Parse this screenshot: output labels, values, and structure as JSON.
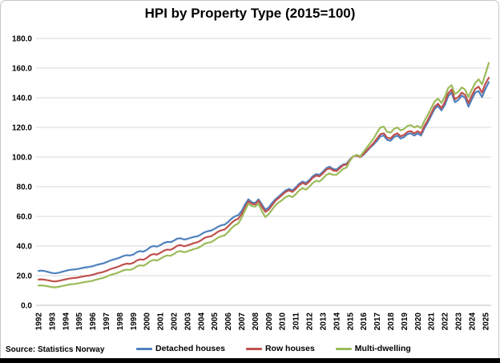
{
  "title": "HPI by Property Type (2015=100)",
  "source_note": "Source: Statistics Norway",
  "colors": {
    "detached": "#4F81BD",
    "row": "#C0504D",
    "multi": "#9BBB59",
    "gridline": "#D9D9D9",
    "axis_line": "#BFBFBF",
    "bottom_bar": "#000000",
    "chart_border": "#C6C6C6"
  },
  "chart_data": {
    "type": "line",
    "title": "HPI by Property Type (2015=100)",
    "xlabel": "",
    "ylabel": "",
    "ylim": [
      0,
      180
    ],
    "y_tick_step": 20,
    "y_tick_labels": [
      "0.0",
      "20.0",
      "40.0",
      "60.0",
      "80.0",
      "100.0",
      "120.0",
      "140.0",
      "160.0",
      "180.0"
    ],
    "x_tick_labels": [
      "1992",
      "1993",
      "1994",
      "1995",
      "1996",
      "1997",
      "1998",
      "1999",
      "2000",
      "2001",
      "2002",
      "2003",
      "2004",
      "2005",
      "2006",
      "2007",
      "2008",
      "2009",
      "2010",
      "2011",
      "2012",
      "2013",
      "2014",
      "2015",
      "2016",
      "2017",
      "2018",
      "2019",
      "2020",
      "2021",
      "2022",
      "2023",
      "2024",
      "2025"
    ],
    "points_per_year": 4,
    "grid": true,
    "legend_position": "bottom",
    "series": [
      {
        "name": "Detached houses",
        "color": "#4F81BD",
        "values": [
          23.2,
          23.4,
          23.0,
          22.4,
          21.8,
          21.6,
          22.0,
          22.6,
          23.2,
          23.8,
          24.1,
          24.3,
          24.7,
          25.2,
          25.6,
          25.9,
          26.4,
          27.1,
          27.7,
          28.2,
          29.0,
          30.0,
          30.8,
          31.4,
          32.2,
          33.2,
          33.8,
          33.6,
          34.2,
          35.8,
          36.6,
          36.2,
          37.4,
          39.2,
          40.0,
          39.6,
          40.6,
          42.0,
          42.8,
          42.6,
          43.6,
          45.0,
          45.2,
          44.4,
          44.8,
          45.6,
          46.2,
          46.6,
          47.8,
          49.2,
          50.0,
          50.4,
          51.6,
          53.0,
          54.0,
          54.4,
          56.2,
          58.4,
          60.0,
          60.8,
          63.5,
          68.0,
          71.5,
          69.5,
          69.0,
          71.5,
          68.0,
          64.5,
          66.0,
          69.0,
          71.5,
          73.5,
          75.5,
          77.5,
          78.5,
          77.5,
          79.5,
          82.0,
          83.5,
          82.5,
          84.5,
          87.0,
          88.5,
          88.0,
          90.0,
          92.5,
          93.5,
          92.0,
          91.5,
          93.5,
          95.0,
          95.5,
          98.5,
          100.5,
          101.0,
          100.0,
          101.5,
          104.0,
          106.5,
          108.5,
          111.0,
          114.0,
          114.5,
          111.5,
          111.0,
          113.5,
          114.5,
          112.5,
          113.5,
          115.5,
          116.0,
          114.5,
          116.0,
          114.5,
          119.5,
          123.5,
          128.0,
          132.5,
          134.5,
          131.5,
          135.0,
          141.0,
          143.5,
          137.0,
          138.5,
          141.5,
          140.0,
          134.0,
          139.0,
          143.5,
          144.5,
          140.5,
          146.0,
          150.5
        ]
      },
      {
        "name": "Row houses",
        "color": "#C0504D",
        "values": [
          17.4,
          17.5,
          17.2,
          16.8,
          16.3,
          16.1,
          16.5,
          17.0,
          17.5,
          18.0,
          18.3,
          18.5,
          18.9,
          19.4,
          19.8,
          20.1,
          20.6,
          21.3,
          21.9,
          22.4,
          23.2,
          24.2,
          25.0,
          25.6,
          26.5,
          27.5,
          28.1,
          27.9,
          28.6,
          30.2,
          31.0,
          30.7,
          32.0,
          33.8,
          34.6,
          34.2,
          35.4,
          36.8,
          37.6,
          37.4,
          38.6,
          40.2,
          40.6,
          39.8,
          40.4,
          41.2,
          42.0,
          42.6,
          43.8,
          45.4,
          46.2,
          46.6,
          48.0,
          49.6,
          50.6,
          51.2,
          53.2,
          55.6,
          57.4,
          58.4,
          61.5,
          66.0,
          70.0,
          68.5,
          68.0,
          70.5,
          66.5,
          63.0,
          64.5,
          67.5,
          70.5,
          72.5,
          74.5,
          76.5,
          77.5,
          76.5,
          78.5,
          81.0,
          82.5,
          81.5,
          83.5,
          86.0,
          87.5,
          87.0,
          89.0,
          91.5,
          92.5,
          91.0,
          90.5,
          92.5,
          94.5,
          95.0,
          98.0,
          100.5,
          101.0,
          100.0,
          102.0,
          104.5,
          107.0,
          109.5,
          112.5,
          115.5,
          116.0,
          113.0,
          112.5,
          115.0,
          116.0,
          114.0,
          115.0,
          117.0,
          117.5,
          116.0,
          117.5,
          116.0,
          121.0,
          125.0,
          129.5,
          134.0,
          136.0,
          133.0,
          137.0,
          143.0,
          145.5,
          139.0,
          140.5,
          143.5,
          142.0,
          136.5,
          141.5,
          146.0,
          147.5,
          143.5,
          149.5,
          153.5
        ]
      },
      {
        "name": "Multi-dwelling",
        "color": "#9BBB59",
        "values": [
          13.3,
          13.4,
          13.1,
          12.7,
          12.3,
          12.1,
          12.5,
          13.0,
          13.5,
          14.0,
          14.3,
          14.5,
          14.9,
          15.4,
          15.8,
          16.1,
          16.6,
          17.3,
          17.9,
          18.4,
          19.2,
          20.2,
          21.0,
          21.6,
          22.5,
          23.5,
          24.1,
          23.9,
          24.6,
          26.2,
          27.0,
          26.7,
          28.0,
          29.8,
          30.6,
          30.2,
          31.4,
          32.8,
          33.6,
          33.4,
          34.6,
          36.2,
          36.6,
          35.8,
          36.4,
          37.2,
          38.0,
          38.6,
          39.8,
          41.4,
          42.2,
          42.6,
          44.0,
          45.6,
          46.6,
          47.2,
          49.4,
          52.0,
          54.0,
          55.2,
          59.0,
          64.0,
          68.5,
          67.0,
          66.5,
          68.5,
          63.5,
          59.5,
          61.5,
          64.5,
          67.5,
          69.5,
          71.0,
          73.0,
          74.0,
          73.0,
          75.0,
          77.5,
          79.0,
          78.0,
          80.0,
          82.5,
          84.0,
          83.5,
          85.5,
          88.0,
          89.0,
          88.0,
          88.0,
          90.0,
          92.0,
          93.0,
          97.5,
          100.5,
          101.5,
          100.5,
          103.5,
          106.5,
          109.5,
          112.5,
          116.5,
          120.0,
          120.5,
          117.0,
          116.5,
          119.0,
          120.0,
          118.0,
          119.0,
          121.0,
          121.5,
          120.0,
          121.0,
          119.5,
          124.5,
          128.5,
          133.0,
          137.5,
          139.5,
          136.5,
          140.5,
          146.5,
          148.5,
          142.5,
          144.0,
          147.0,
          145.5,
          140.5,
          145.5,
          150.0,
          152.5,
          149.0,
          156.0,
          163.5
        ]
      }
    ]
  }
}
